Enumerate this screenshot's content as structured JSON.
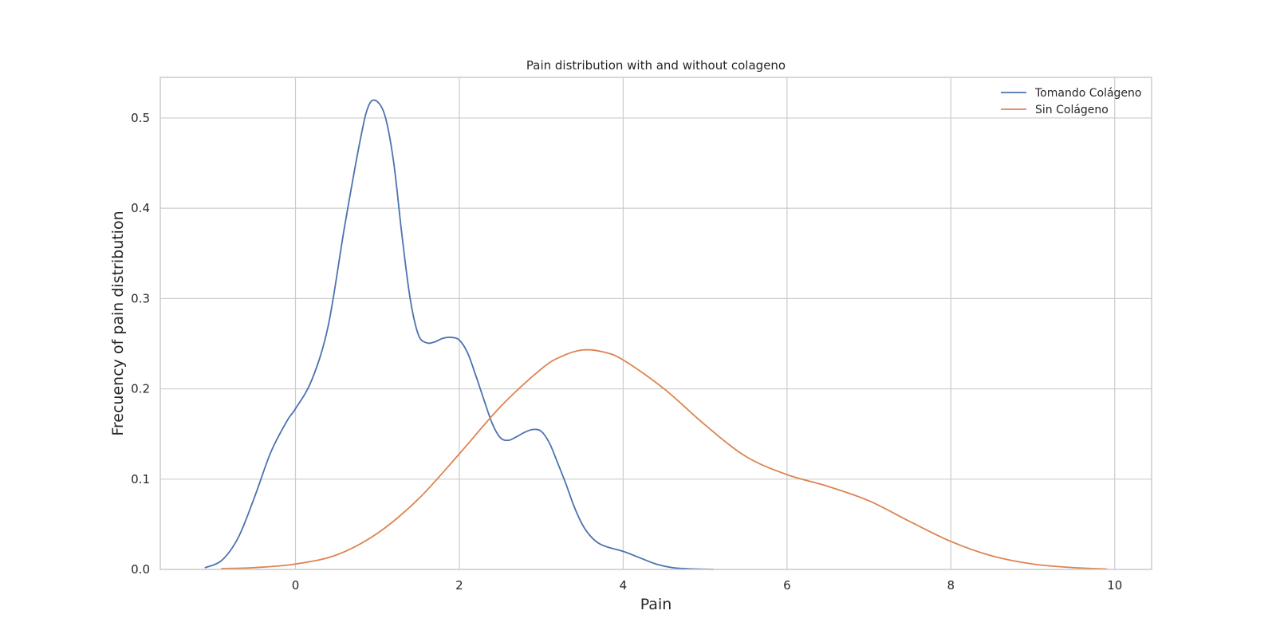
{
  "chart_data": {
    "type": "line",
    "title": "Pain distribution with and without colageno",
    "xlabel": "Pain",
    "ylabel": "Frecuency of pain distribution",
    "xlim": [
      -1.65,
      10.45
    ],
    "ylim": [
      0,
      0.545
    ],
    "xticks": [
      0,
      2,
      4,
      6,
      8,
      10
    ],
    "yticks": [
      0.0,
      0.1,
      0.2,
      0.3,
      0.4,
      0.5
    ],
    "xtick_labels": [
      "0",
      "2",
      "4",
      "6",
      "8",
      "10"
    ],
    "ytick_labels": [
      "0.0",
      "0.1",
      "0.2",
      "0.3",
      "0.4",
      "0.5"
    ],
    "grid": true,
    "legend": "top-right",
    "series": [
      {
        "name": "Tomando Colágeno",
        "color": "#4c72b0",
        "x": [
          -1.1,
          -0.9,
          -0.7,
          -0.5,
          -0.3,
          -0.1,
          0.0,
          0.2,
          0.4,
          0.6,
          0.8,
          0.9,
          1.0,
          1.1,
          1.2,
          1.3,
          1.4,
          1.5,
          1.6,
          1.7,
          1.8,
          1.9,
          2.0,
          2.1,
          2.2,
          2.3,
          2.4,
          2.5,
          2.6,
          2.7,
          2.8,
          2.9,
          3.0,
          3.1,
          3.2,
          3.3,
          3.4,
          3.5,
          3.6,
          3.7,
          3.8,
          4.0,
          4.2,
          4.4,
          4.6,
          4.8,
          5.1
        ],
        "y": [
          0.002,
          0.01,
          0.035,
          0.08,
          0.13,
          0.165,
          0.178,
          0.21,
          0.27,
          0.38,
          0.48,
          0.515,
          0.518,
          0.5,
          0.45,
          0.37,
          0.3,
          0.26,
          0.251,
          0.252,
          0.256,
          0.257,
          0.254,
          0.24,
          0.215,
          0.188,
          0.162,
          0.146,
          0.143,
          0.147,
          0.152,
          0.155,
          0.153,
          0.14,
          0.118,
          0.095,
          0.07,
          0.05,
          0.037,
          0.029,
          0.025,
          0.02,
          0.013,
          0.006,
          0.002,
          0.0008,
          0.0001
        ]
      },
      {
        "name": "Sin Colágeno",
        "color": "#dd8452",
        "x": [
          -0.9,
          -0.5,
          0.0,
          0.5,
          1.0,
          1.5,
          2.0,
          2.5,
          3.0,
          3.25,
          3.5,
          3.75,
          4.0,
          4.5,
          5.0,
          5.5,
          6.0,
          6.5,
          7.0,
          7.5,
          8.0,
          8.5,
          9.0,
          9.5,
          9.9
        ],
        "y": [
          0.001,
          0.002,
          0.006,
          0.016,
          0.04,
          0.078,
          0.128,
          0.18,
          0.222,
          0.236,
          0.243,
          0.241,
          0.232,
          0.2,
          0.16,
          0.125,
          0.105,
          0.092,
          0.076,
          0.053,
          0.031,
          0.015,
          0.006,
          0.002,
          0.0005
        ]
      }
    ]
  }
}
